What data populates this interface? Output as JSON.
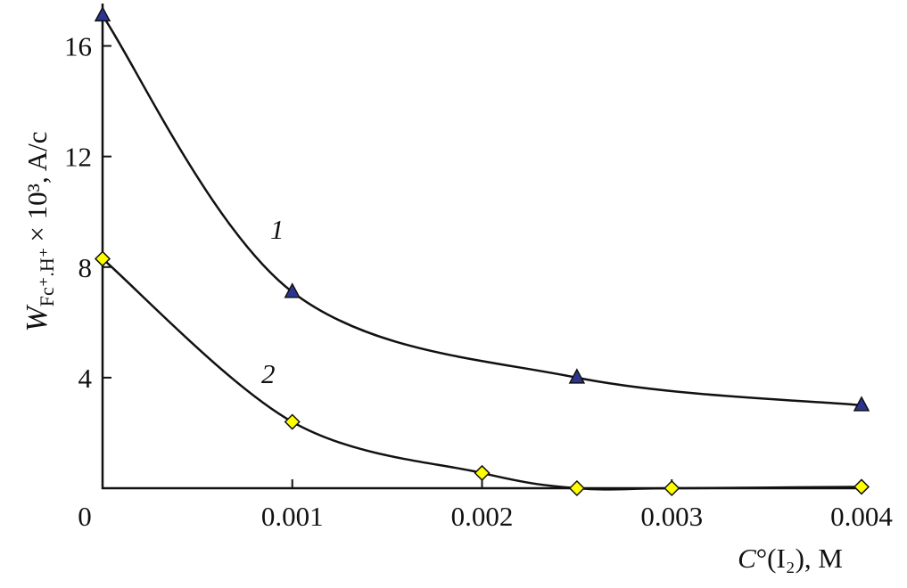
{
  "chart_data": {
    "type": "line",
    "y_label": "W",
    "y_label_sub": "Fc⁺.H⁺",
    "y_label_unit": "× 10³, A/c",
    "x_label_var": "C",
    "x_label_rest": "°(I₂), M",
    "xlim": [
      0,
      0.004
    ],
    "xticks": [
      0,
      0.001,
      0.002,
      0.003,
      0.004
    ],
    "ylim": [
      0,
      17.5
    ],
    "yticks": [
      4,
      8,
      12,
      16
    ],
    "series": [
      {
        "name": "1",
        "color": "#2b3590",
        "marker": "triangle",
        "x": [
          0,
          0.001,
          0.0025,
          0.004
        ],
        "values": [
          17.1,
          7.1,
          4.0,
          3.0
        ]
      },
      {
        "name": "2",
        "color": "#ffff00",
        "marker": "diamond",
        "x": [
          0,
          0.001,
          0.002,
          0.0025,
          0.003,
          0.004
        ],
        "values": [
          8.3,
          2.4,
          0.55,
          0,
          0,
          0.05
        ]
      }
    ]
  }
}
